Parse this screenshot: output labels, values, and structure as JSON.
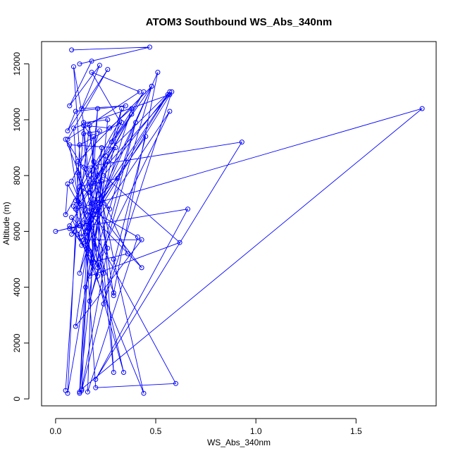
{
  "chart_data": {
    "type": "line",
    "title": "ATOM3 Southbound WS_Abs_340nm",
    "xlabel": "WS_Abs_340nm",
    "ylabel": "Altitude (m)",
    "xlim": [
      -0.07,
      1.9
    ],
    "ylim": [
      -250,
      12800
    ],
    "x_ticks": [
      0.0,
      0.5,
      1.0,
      1.5
    ],
    "x_tick_labels": [
      "0.0",
      "0.5",
      "1.0",
      "1.5"
    ],
    "y_ticks": [
      0,
      2000,
      4000,
      6000,
      8000,
      10000,
      12000
    ],
    "y_tick_labels": [
      "0",
      "2000",
      "4000",
      "6000",
      "8000",
      "10000",
      "12000"
    ],
    "grid": false,
    "legend": "none",
    "marker": "open-circle",
    "color": "#0000ff",
    "series": [
      {
        "x": [
          0.08,
          0.47,
          0.12,
          0.18,
          0.07,
          0.22,
          0.13,
          0.35,
          0.1,
          0.06,
          0.26,
          0.06,
          0.42,
          0.18,
          0.32,
          0.05,
          0.06,
          0.6,
          0.2,
          0.09,
          0.14,
          0.26,
          0.12,
          0.21,
          0.17,
          0.44,
          0.28,
          0.38,
          0.07,
          0.19,
          0.14,
          0.22,
          0.1,
          0.26,
          0.06,
          0.12,
          0.33,
          0.09,
          0.21,
          0.14,
          0.27,
          0.38,
          0.12,
          0.25,
          0.17,
          0.08,
          0.19,
          0.13,
          0.45,
          0.11,
          0.21,
          0.23,
          0.16,
          0.12,
          0.23,
          0.29,
          0.17,
          0.12,
          0.41,
          0.16,
          0.19,
          0.57,
          0.17,
          0.36,
          0.18,
          0.11,
          0.48,
          0.13,
          0.09,
          0.57,
          0.21,
          0.1,
          1.83,
          0.13,
          0.26,
          0.14,
          0.93,
          0.2,
          0.66,
          0.07,
          0.17,
          0.34,
          0.11,
          0.24,
          0.15,
          0.07,
          0.3,
          0.08,
          0.16,
          0.43,
          0.18,
          0.31,
          0.12,
          0.27,
          0.05,
          0.2,
          0.13,
          0.51,
          0.29,
          0.17,
          0.1,
          0.43,
          0.14,
          0.57,
          0.17,
          0.62,
          0.24,
          0.56,
          0.14,
          0.17,
          0.0,
          0.12,
          0.08,
          0.44,
          0.29,
          0.2,
          0.48,
          0.17,
          0.4,
          0.15,
          0.33,
          0.15,
          0.58,
          0.24,
          0.19,
          0.29,
          0.17,
          0.14,
          0.05
        ],
        "y": [
          12500,
          12600,
          12000,
          12100,
          10500,
          11950,
          10400,
          10500,
          10300,
          9600,
          11800,
          9300,
          11000,
          11700,
          9950,
          6600,
          7700,
          550,
          400,
          11900,
          9900,
          10000,
          200,
          10400,
          7400,
          11000,
          9200,
          10200,
          6200,
          4900,
          9500,
          9600,
          7100,
          8500,
          200,
          9100,
          9900,
          6900,
          4700,
          9800,
          9700,
          10400,
          4500,
          8700,
          6200,
          7800,
          9400,
          300,
          9400,
          5900,
          4400,
          9000,
          6000,
          250,
          7800,
          950,
          9800,
          7000,
          5800,
          250,
          6600,
          11000,
          8200,
          5200,
          4900,
          8500,
          11200,
          5800,
          9700,
          10900,
          8000,
          6800,
          10400,
          350,
          5400,
          8300,
          9200,
          700,
          6800,
          6100,
          5300,
          950,
          8100,
          4500,
          5500,
          9100,
          9000,
          5900,
          6700,
          4700,
          7000,
          7900,
          7600,
          6800,
          9300,
          6600,
          5500,
          11700,
          3800,
          6100,
          2600,
          5700,
          5700,
          10300,
          4400,
          5600,
          8000,
          10900,
          6300,
          6300,
          6000,
          6200,
          6500,
          200,
          5000,
          8300,
          11200,
          3500,
          9900,
          4000,
          10400,
          6000,
          11000,
          3400,
          8500,
          3700,
          9500,
          9800,
          300
        ]
      }
    ]
  }
}
